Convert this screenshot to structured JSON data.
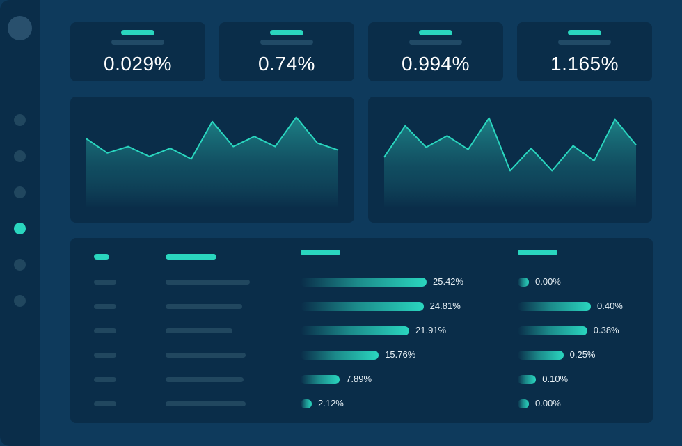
{
  "kpis": [
    "0.029%",
    "0.74%",
    "0.994%",
    "1.165%"
  ],
  "colors": {
    "background": "#0e3a5c",
    "panel": "#0a2d49",
    "accent": "#2ad6bf",
    "placeholder": "#21475f"
  },
  "chart_data": [
    {
      "type": "area",
      "x": [
        0,
        1,
        2,
        3,
        4,
        5,
        6,
        7,
        8,
        9,
        10,
        11,
        12
      ],
      "values": [
        0.52,
        0.12,
        0.3,
        0.02,
        0.25,
        -0.05,
        1.0,
        0.3,
        0.58,
        0.3,
        1.12,
        0.4,
        0.2
      ]
    },
    {
      "type": "area",
      "x": [
        0,
        1,
        2,
        3,
        4,
        5,
        6,
        7,
        8,
        9,
        10,
        11,
        12
      ],
      "values": [
        0.0,
        0.88,
        0.28,
        0.6,
        0.22,
        1.1,
        -0.38,
        0.25,
        -0.38,
        0.32,
        -0.1,
        1.06,
        0.34
      ]
    },
    {
      "type": "bar",
      "series": [
        {
          "values": [
            25.42,
            24.81,
            21.91,
            15.76,
            7.89,
            2.12
          ]
        },
        {
          "values": [
            0.0,
            0.4,
            0.38,
            0.25,
            0.1,
            0.0
          ]
        }
      ]
    }
  ],
  "table": {
    "rows": [
      {
        "pct1": "25.42%",
        "pct2": "0.00%"
      },
      {
        "pct1": "24.81%",
        "pct2": "0.40%"
      },
      {
        "pct1": "21.91%",
        "pct2": "0.38%"
      },
      {
        "pct1": "15.76%",
        "pct2": "0.25%"
      },
      {
        "pct1": "7.89%",
        "pct2": "0.10%"
      },
      {
        "pct1": "2.12%",
        "pct2": "0.00%"
      }
    ]
  }
}
